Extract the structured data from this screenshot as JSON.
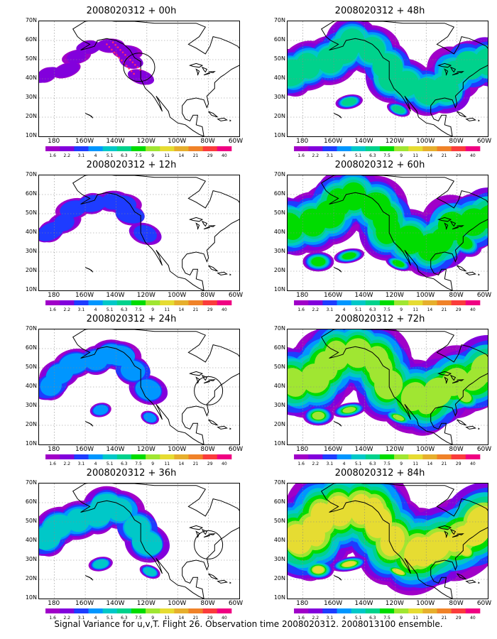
{
  "panels": [
    {
      "title": "2008020312 + 00h",
      "lead": 0
    },
    {
      "title": "2008020312 + 12h",
      "lead": 12
    },
    {
      "title": "2008020312 + 24h",
      "lead": 24
    },
    {
      "title": "2008020312 + 36h",
      "lead": 36
    },
    {
      "title": "2008020312 + 48h",
      "lead": 48
    },
    {
      "title": "2008020312 + 60h",
      "lead": 60
    },
    {
      "title": "2008020312 + 72h",
      "lead": 72
    },
    {
      "title": "2008020312 + 84h",
      "lead": 84
    }
  ],
  "axes": {
    "lat_labels": [
      "70N",
      "60N",
      "50N",
      "40N",
      "30N",
      "20N",
      "10N"
    ],
    "lon_labels": [
      "180",
      "160W",
      "140W",
      "120W",
      "100W",
      "80W",
      "60W"
    ],
    "lat_range": [
      10,
      70
    ],
    "lon_range": [
      -190,
      -60
    ]
  },
  "colorbar": {
    "levels": [
      "1.6",
      "2.2",
      "3.1",
      "4",
      "5.1",
      "6.3",
      "7.5",
      "9",
      "11",
      "14",
      "21",
      "29",
      "40"
    ],
    "colors": [
      "#a000c8",
      "#8200dc",
      "#1e3cff",
      "#0096ff",
      "#00c8c8",
      "#00d28c",
      "#00dc00",
      "#a0e632",
      "#e6dc32",
      "#e6af2d",
      "#f08228",
      "#fa3c3c",
      "#f00082"
    ]
  },
  "caption": "Signal Variance for u,v,T. Flight 26. Observation time 2008020312. 2008013100 ensemble."
}
